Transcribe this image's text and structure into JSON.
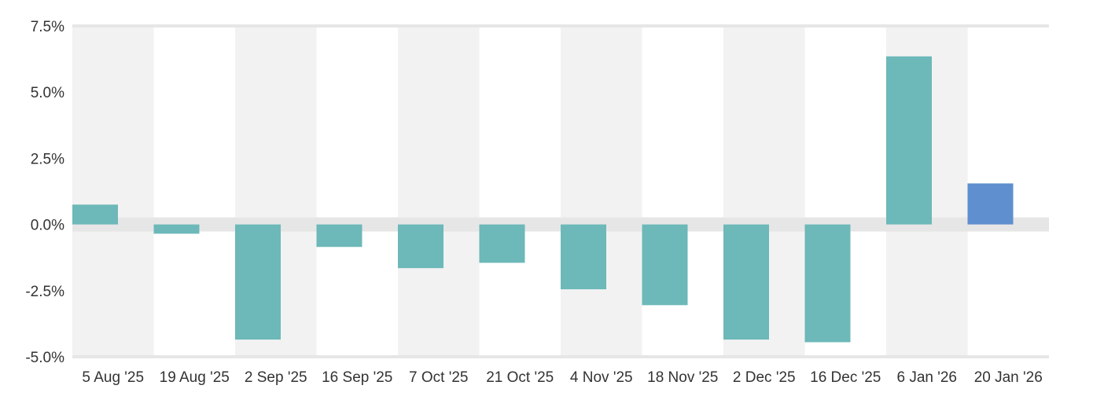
{
  "chart_data": {
    "type": "bar",
    "title": "",
    "xlabel": "",
    "ylabel": "",
    "categories": [
      "5 Aug '25",
      "19 Aug '25",
      "2 Sep '25",
      "16 Sep '25",
      "7 Oct '25",
      "21 Oct '25",
      "4 Nov '25",
      "18 Nov '25",
      "2 Dec '25",
      "16 Dec '25",
      "6 Jan '26",
      "20 Jan '26"
    ],
    "values": [
      0.75,
      -0.35,
      -4.35,
      -0.85,
      -1.65,
      -1.45,
      -2.45,
      -3.05,
      -4.35,
      -4.45,
      6.35,
      1.55
    ],
    "ylim": [
      -5.0,
      7.5
    ],
    "yticks": [
      7.5,
      5.0,
      2.5,
      0.0,
      -2.5,
      -5.0
    ],
    "ytick_labels": [
      "7.5%",
      "5.0%",
      "2.5%",
      "0.0%",
      "-2.5%",
      "-5.0%"
    ],
    "grid": false,
    "legend": "none",
    "colors": {
      "bar": "#6db8b9",
      "highlight_bar": "#5f8fce",
      "band": "#f2f2f2",
      "zero_band": "#e6e6e6",
      "axis_line": "#e6e6e6",
      "text": "#333333"
    },
    "highlight_index": 11
  }
}
